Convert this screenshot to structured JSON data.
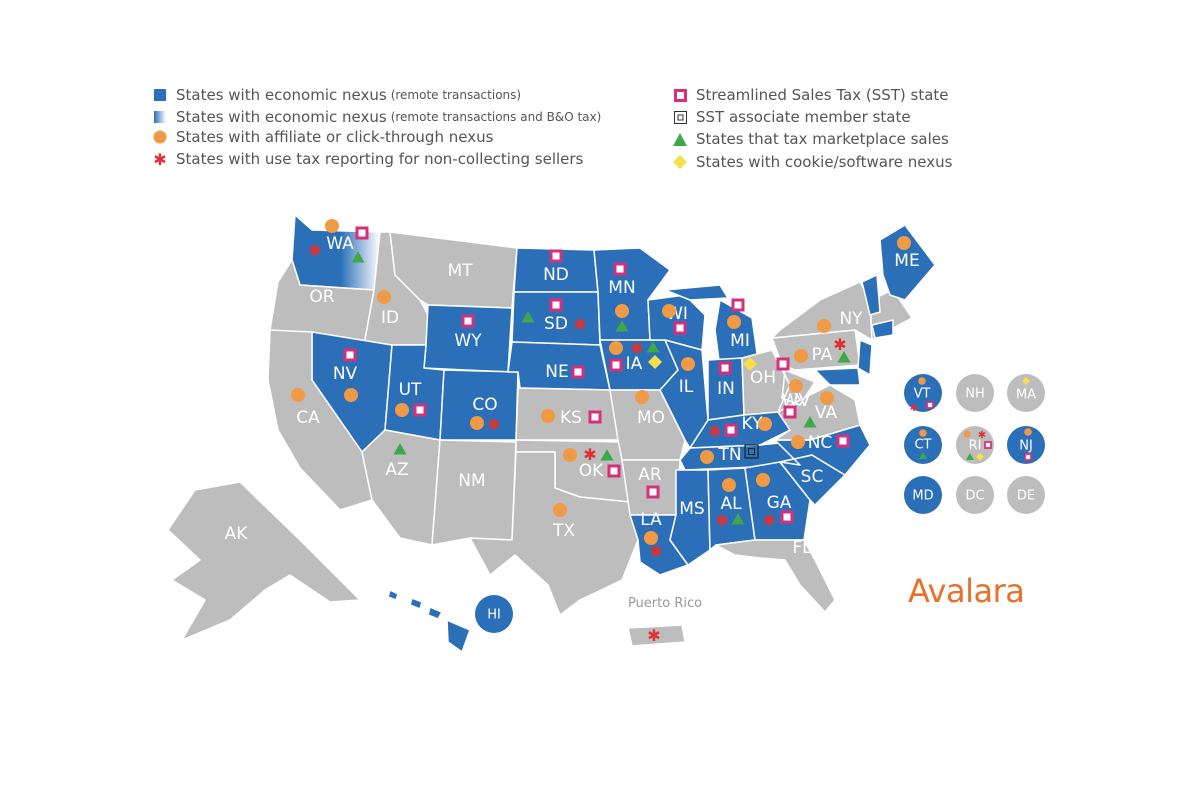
{
  "colors": {
    "nexus_blue": "#2a6fb8",
    "gray_state": "#bdbdbd",
    "affiliate_orange": "#f09a45",
    "sst_pink": "#d6307c",
    "marketplace_green": "#3fa84a",
    "cookie_yellow": "#f4e04a",
    "use_tax_red": "#e03030",
    "brand_orange": "#e8702a"
  },
  "legend": {
    "left": [
      {
        "icon": "blue-square-icon",
        "text": "States with economic nexus",
        "small": "(remote transactions)"
      },
      {
        "icon": "gradient-square-icon",
        "text": "States with economic nexus",
        "small": "(remote transactions and B&O tax)"
      },
      {
        "icon": "orange-circle-icon",
        "text": "States with affiliate or click-through nexus",
        "small": ""
      },
      {
        "icon": "red-asterisk-icon",
        "text": "States with use tax reporting for non-collecting sellers",
        "small": ""
      }
    ],
    "right": [
      {
        "icon": "pink-square-icon",
        "text": "Streamlined Sales Tax (SST) state"
      },
      {
        "icon": "black-square-icon",
        "text": "SST associate member state"
      },
      {
        "icon": "green-triangle-icon",
        "text": "States that tax marketplace sales"
      },
      {
        "icon": "yellow-diamond-icon",
        "text": "States with cookie/software nexus"
      }
    ]
  },
  "states": {
    "WA": "WA",
    "OR": "OR",
    "ID": "ID",
    "MT": "MT",
    "WY": "WY",
    "NV": "NV",
    "UT": "UT",
    "CO": "CO",
    "CA": "CA",
    "AZ": "AZ",
    "NM": "NM",
    "ND": "ND",
    "SD": "SD",
    "NE": "NE",
    "KS": "KS",
    "OK": "OK",
    "TX": "TX",
    "MN": "MN",
    "IA": "IA",
    "MO": "MO",
    "AR": "AR",
    "LA": "LA",
    "WI": "WI",
    "IL": "IL",
    "MI": "MI",
    "IN": "IN",
    "OH": "OH",
    "KY": "KY",
    "TN": "TN",
    "MS": "MS",
    "AL": "AL",
    "GA": "GA",
    "FL": "FL",
    "SC": "SC",
    "NC": "NC",
    "VA": "VA",
    "WV": "WV",
    "PA": "PA",
    "NY": "NY",
    "ME": "ME",
    "AK": "AK",
    "HI": "HI"
  },
  "small_states": [
    {
      "id": "VT",
      "label": "VT",
      "nexus": true
    },
    {
      "id": "NH",
      "label": "NH",
      "nexus": false
    },
    {
      "id": "MA",
      "label": "MA",
      "nexus": false
    },
    {
      "id": "CT",
      "label": "CT",
      "nexus": true
    },
    {
      "id": "RI",
      "label": "RI",
      "nexus": false
    },
    {
      "id": "NJ",
      "label": "NJ",
      "nexus": true
    },
    {
      "id": "MD",
      "label": "MD",
      "nexus": true
    },
    {
      "id": "DC",
      "label": "DC",
      "nexus": false
    },
    {
      "id": "DE",
      "label": "DE",
      "nexus": false
    }
  ],
  "territory": {
    "puerto_rico": "Puerto Rico"
  },
  "brand": {
    "logo": "Avalara"
  }
}
